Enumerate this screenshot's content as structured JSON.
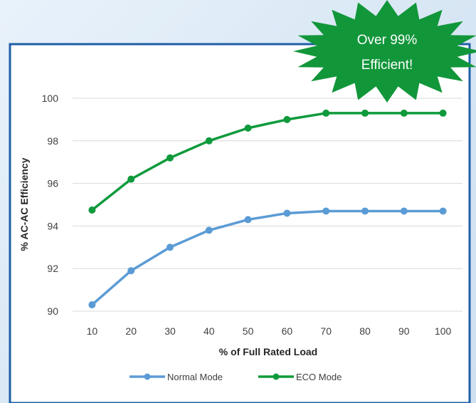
{
  "colors": {
    "frame": "#1f5fa6",
    "normal_series": "#5b9bd5",
    "eco_series": "#0f9a3c",
    "burst": "#12963a",
    "gridline": "#d9d9d9"
  },
  "callout": {
    "line1": "Over 99%",
    "line2": "Efficient!"
  },
  "chart_data": {
    "type": "line",
    "title": "",
    "xlabel": "% of Full Rated Load",
    "ylabel": "% AC-AC Efficiency",
    "x": [
      10,
      20,
      30,
      40,
      50,
      60,
      70,
      80,
      90,
      100
    ],
    "ylim": [
      90,
      100
    ],
    "yticks": [
      90,
      92,
      94,
      96,
      98,
      100
    ],
    "grid": true,
    "legend_position": "bottom",
    "series": [
      {
        "name": "Normal Mode",
        "color": "#5b9bd5",
        "values": [
          90.3,
          91.9,
          93.0,
          93.8,
          94.3,
          94.6,
          94.7,
          94.7,
          94.7,
          94.7
        ]
      },
      {
        "name": "ECO Mode",
        "color": "#0f9a3c",
        "values": [
          94.75,
          96.2,
          97.2,
          98.0,
          98.6,
          99.0,
          99.3,
          99.3,
          99.3,
          99.3
        ]
      }
    ]
  }
}
